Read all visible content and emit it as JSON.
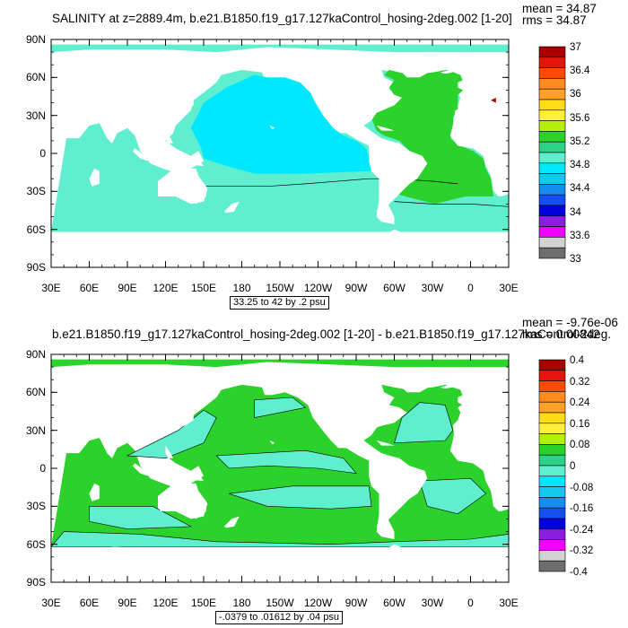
{
  "chart_data": [
    {
      "type": "heatmap",
      "title": "SALINITY at z=2889.4m, b.e21.B1850.f19_g17.127kaControl_hosing-2deg.002 [1-20]",
      "stats": {
        "mean": "mean = 34.87",
        "rms": "rms = 34.87"
      },
      "contour_info": "33.25 to 42 by .2 psu",
      "lat_ticks": [
        "90N",
        "60N",
        "30N",
        "0",
        "30S",
        "60S",
        "90S"
      ],
      "lon_ticks": [
        "30E",
        "60E",
        "90E",
        "120E",
        "150E",
        "180",
        "150W",
        "120W",
        "90W",
        "60W",
        "30W",
        "0",
        "30E"
      ],
      "colorbar": {
        "labels": [
          "37",
          "36.4",
          "36",
          "35.6",
          "35.2",
          "34.8",
          "34.4",
          "34",
          "33.6",
          "33"
        ],
        "colors": [
          "#a80000",
          "#e6150b",
          "#ff4b00",
          "#ff8c1e",
          "#ffa028",
          "#ffdc14",
          "#fff03c",
          "#b4f00a",
          "#2bd22b",
          "#2bd288",
          "#5fefcf",
          "#00e8ff",
          "#14c8f0",
          "#148cf0",
          "#1450f0",
          "#0000dc",
          "#8c1ee1",
          "#ef00ff",
          "#d2d2d2",
          "#6e6e6e"
        ]
      }
    },
    {
      "type": "heatmap",
      "title": "b.e21.B1850.f19_g17.127kaControl_hosing-2deg.002 [1-20] - b.e21.B1850.f19_g17.127kaControl-2deg.",
      "stats": {
        "mean": "mean = -9.76e-06",
        "rms": "rms = 0.00842"
      },
      "contour_info": "-.0379 to .01612 by .04 psu",
      "lat_ticks": [
        "90N",
        "60N",
        "30N",
        "0",
        "30S",
        "60S",
        "90S"
      ],
      "lon_ticks": [
        "30E",
        "60E",
        "90E",
        "120E",
        "150E",
        "180",
        "150W",
        "120W",
        "90W",
        "60W",
        "30W",
        "0",
        "30E"
      ],
      "colorbar": {
        "labels": [
          "0.4",
          "0.32",
          "0.24",
          "0.16",
          "0.08",
          "0",
          "-0.08",
          "-0.16",
          "-0.24",
          "-0.32",
          "-0.4"
        ],
        "colors": [
          "#a80000",
          "#e6150b",
          "#ff4b00",
          "#ff8c1e",
          "#ffa028",
          "#ffdc14",
          "#fff03c",
          "#b4f00a",
          "#2bd22b",
          "#2bd288",
          "#5fefcf",
          "#00e8ff",
          "#14c8f0",
          "#148cf0",
          "#1450f0",
          "#0000dc",
          "#8c1ee1",
          "#ef00ff",
          "#d2d2d2",
          "#6e6e6e"
        ]
      }
    }
  ],
  "palette": {
    "p1_pacific": "#00e8ff",
    "p1_ocean": "#5fefcf",
    "p1_atlantic": "#2bd22b",
    "p2_green": "#2bd22b",
    "p2_aqua": "#5fefcf",
    "contour": "#000000"
  }
}
